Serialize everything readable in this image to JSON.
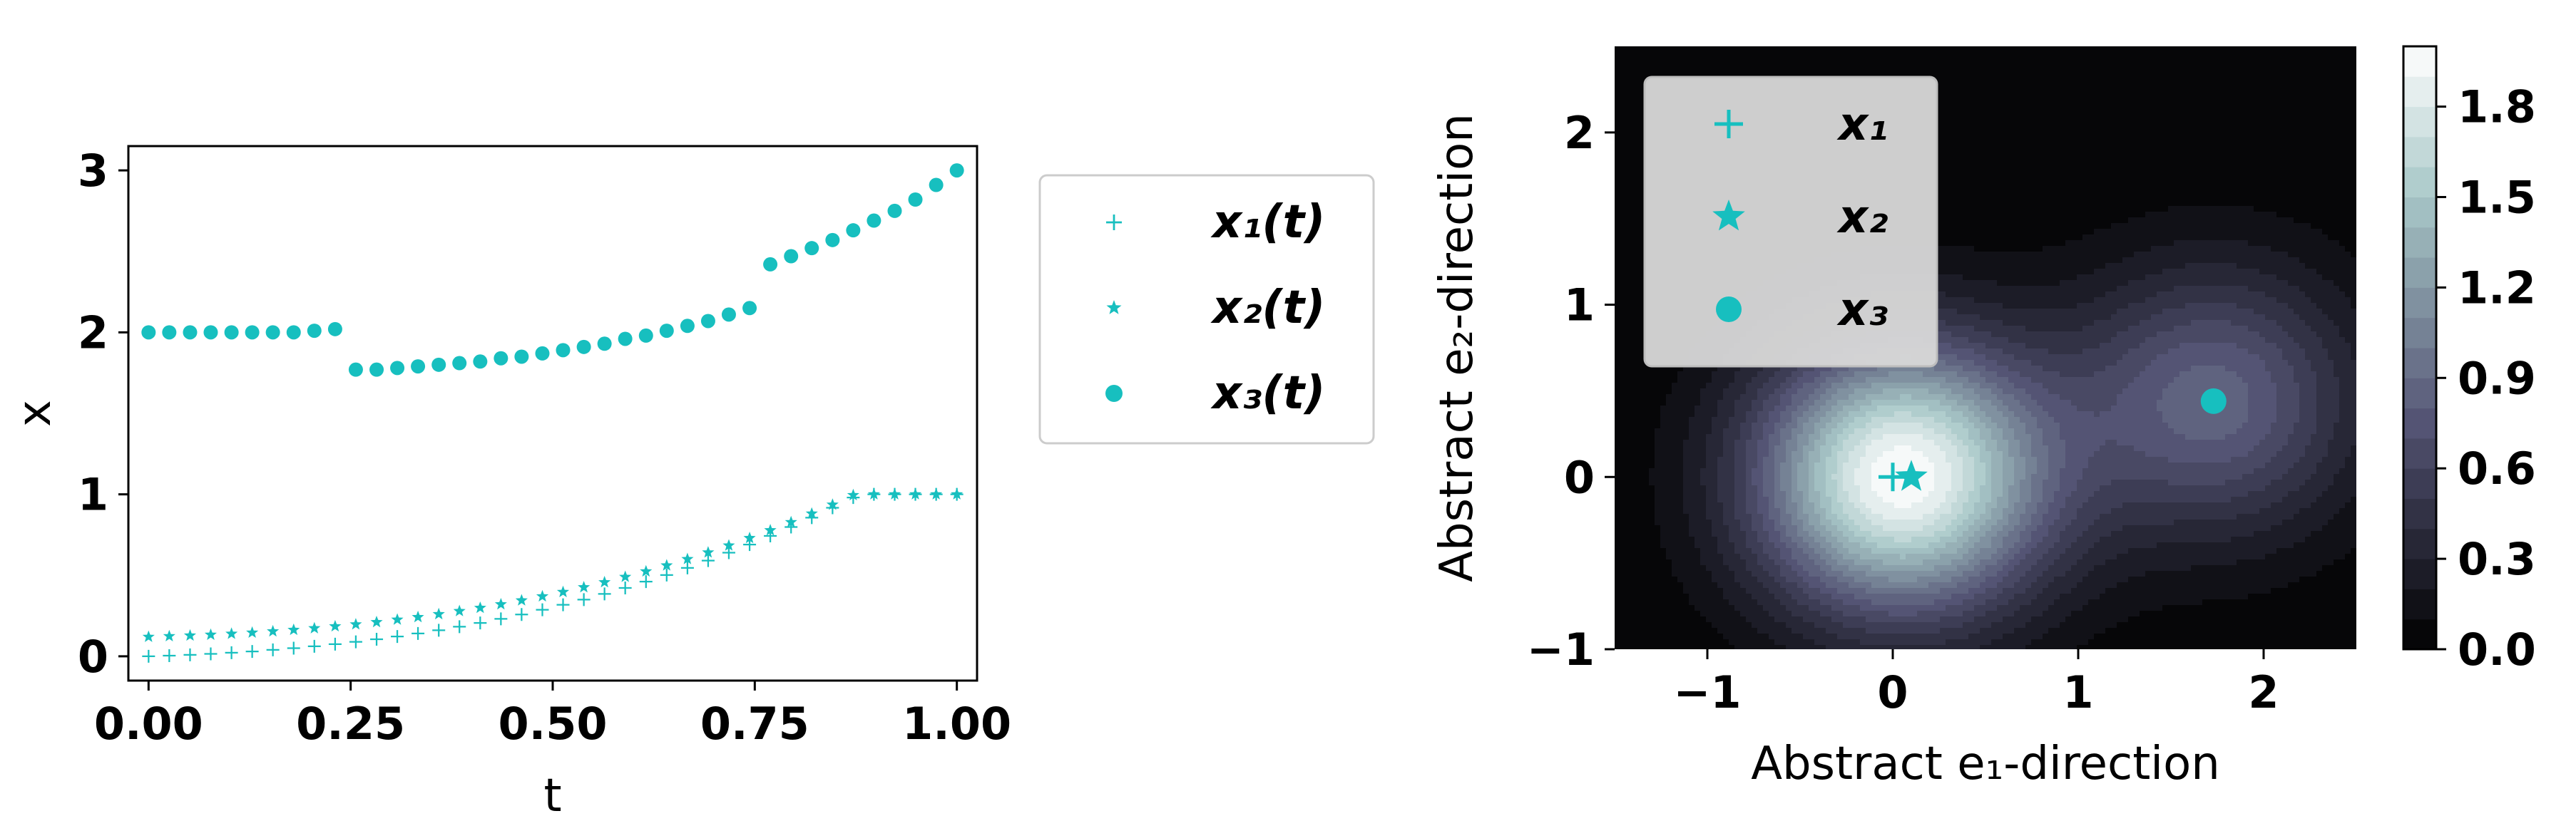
{
  "chart_data": [
    {
      "type": "scatter",
      "xlabel": "t",
      "ylabel": "x",
      "xlim": [
        -0.025,
        1.025
      ],
      "ylim": [
        -0.15,
        3.15
      ],
      "xticks": [
        "0.00",
        "0.25",
        "0.50",
        "0.75",
        "1.00"
      ],
      "xtick_values": [
        0,
        0.25,
        0.5,
        0.75,
        1.0
      ],
      "yticks": [
        "0",
        "1",
        "2",
        "3"
      ],
      "ytick_values": [
        0,
        1,
        2,
        3
      ],
      "grid": false,
      "legend_position": "outside right",
      "color": "#17bfbf",
      "series": [
        {
          "name": "x₁(t)",
          "marker": "plus",
          "x": [
            0.0,
            0.0256,
            0.0513,
            0.0769,
            0.1026,
            0.1282,
            0.1538,
            0.1795,
            0.2051,
            0.2308,
            0.2564,
            0.2821,
            0.3077,
            0.3333,
            0.359,
            0.3846,
            0.4103,
            0.4359,
            0.4615,
            0.4872,
            0.5128,
            0.5385,
            0.5641,
            0.5897,
            0.6154,
            0.641,
            0.6667,
            0.6923,
            0.7179,
            0.7436,
            0.7692,
            0.7949,
            0.8205,
            0.8462,
            0.8718,
            0.8974,
            0.9231,
            0.9487,
            0.9744,
            1.0
          ],
          "y": [
            0.0,
            0.004,
            0.009,
            0.015,
            0.022,
            0.03,
            0.04,
            0.05,
            0.062,
            0.075,
            0.089,
            0.105,
            0.122,
            0.141,
            0.161,
            0.183,
            0.206,
            0.231,
            0.258,
            0.287,
            0.318,
            0.35,
            0.385,
            0.422,
            0.461,
            0.502,
            0.546,
            0.591,
            0.64,
            0.69,
            0.743,
            0.798,
            0.856,
            0.917,
            0.98,
            1.0,
            1.0,
            1.0,
            1.0,
            1.0
          ]
        },
        {
          "name": "x₂(t)",
          "marker": "star",
          "x": [
            0.0,
            0.0256,
            0.0513,
            0.0769,
            0.1026,
            0.1282,
            0.1538,
            0.1795,
            0.2051,
            0.2308,
            0.2564,
            0.2821,
            0.3077,
            0.3333,
            0.359,
            0.3846,
            0.4103,
            0.4359,
            0.4615,
            0.4872,
            0.5128,
            0.5385,
            0.5641,
            0.5897,
            0.6154,
            0.641,
            0.6667,
            0.6923,
            0.7179,
            0.7436,
            0.7692,
            0.7949,
            0.8205,
            0.8462,
            0.8718,
            0.8974,
            0.9231,
            0.9487,
            0.9744,
            1.0
          ],
          "y": [
            0.12,
            0.124,
            0.128,
            0.133,
            0.139,
            0.146,
            0.154,
            0.163,
            0.173,
            0.185,
            0.197,
            0.211,
            0.226,
            0.242,
            0.26,
            0.279,
            0.299,
            0.321,
            0.345,
            0.37,
            0.397,
            0.426,
            0.457,
            0.49,
            0.524,
            0.561,
            0.6,
            0.641,
            0.684,
            0.73,
            0.778,
            0.828,
            0.881,
            0.936,
            0.995,
            1.0,
            1.0,
            1.0,
            1.0,
            1.0
          ]
        },
        {
          "name": "x₃(t)",
          "marker": "circle",
          "x": [
            0.0,
            0.0256,
            0.0513,
            0.0769,
            0.1026,
            0.1282,
            0.1538,
            0.1795,
            0.2051,
            0.2308,
            0.2564,
            0.2821,
            0.3077,
            0.3333,
            0.359,
            0.3846,
            0.4103,
            0.4359,
            0.4615,
            0.4872,
            0.5128,
            0.5385,
            0.5641,
            0.5897,
            0.6154,
            0.641,
            0.6667,
            0.6923,
            0.7179,
            0.7436,
            0.7692,
            0.7949,
            0.8205,
            0.8462,
            0.8718,
            0.8974,
            0.9231,
            0.9487,
            0.9744,
            1.0
          ],
          "y": [
            2.0,
            2.0,
            2.0,
            2.0,
            2.0,
            2.0,
            2.0,
            2.0,
            2.01,
            2.02,
            1.77,
            1.77,
            1.78,
            1.79,
            1.8,
            1.81,
            1.82,
            1.84,
            1.85,
            1.87,
            1.89,
            1.91,
            1.93,
            1.96,
            1.98,
            2.01,
            2.04,
            2.07,
            2.11,
            2.15,
            2.42,
            2.47,
            2.52,
            2.57,
            2.63,
            2.69,
            2.75,
            2.82,
            2.91,
            3.0
          ]
        }
      ]
    },
    {
      "type": "heatmap",
      "subtype": "filled contour",
      "xlabel": "Abstract e₁-direction",
      "ylabel": "Abstract e₂-direction",
      "xlim": [
        -1.5,
        2.5
      ],
      "ylim": [
        -1.0,
        2.5
      ],
      "xticks": [
        "−1",
        "0",
        "1",
        "2"
      ],
      "xtick_values": [
        -1,
        0,
        1,
        2
      ],
      "yticks": [
        "−1",
        "0",
        "1",
        "2"
      ],
      "ytick_values": [
        -1,
        0,
        1,
        2
      ],
      "colormap": "bone",
      "levels": 20,
      "vmin": 0.0,
      "vmax": 2.0,
      "colorbar_ticks": [
        "0.0",
        "0.3",
        "0.6",
        "0.9",
        "1.2",
        "1.5",
        "1.8"
      ],
      "colorbar_tick_values": [
        0.0,
        0.3,
        0.6,
        0.9,
        1.2,
        1.5,
        1.8
      ],
      "legend_position": "upper left",
      "marker_color": "#17bfbf",
      "bumps": [
        {
          "center": [
            0.0,
            0.0
          ],
          "amplitude": 1.0,
          "width": 0.55
        },
        {
          "center": [
            0.1,
            0.0
          ],
          "amplitude": 1.0,
          "width": 0.55
        },
        {
          "center": [
            1.73,
            0.44
          ],
          "amplitude": 0.85,
          "width": 0.55
        }
      ],
      "points": [
        {
          "name": "x₁",
          "marker": "plus",
          "x": 0.0,
          "y": 0.0
        },
        {
          "name": "x₂",
          "marker": "star",
          "x": 0.1,
          "y": 0.0
        },
        {
          "name": "x₃",
          "marker": "circle",
          "x": 1.73,
          "y": 0.44
        }
      ]
    }
  ]
}
